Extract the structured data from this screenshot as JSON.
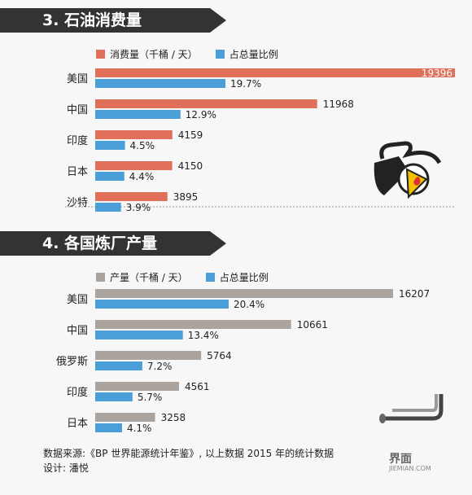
{
  "sections": [
    {
      "title": "3. 石油消费量"
    },
    {
      "title": "4. 各国炼厂产量"
    }
  ],
  "chart_data": [
    {
      "type": "bar",
      "title": "3. 石油消费量",
      "categories": [
        "美国",
        "中国",
        "印度",
        "日本",
        "沙特"
      ],
      "series": [
        {
          "name": "消费量（千桶 / 天）",
          "values": [
            19396,
            11968,
            4159,
            4150,
            3895
          ],
          "labels": [
            "19396",
            "11968",
            "4159",
            "4150",
            "3895"
          ],
          "color": "#e0705a"
        },
        {
          "name": "占总量比例",
          "values": [
            19.7,
            12.9,
            4.5,
            4.4,
            3.9
          ],
          "labels": [
            "19.7%",
            "12.9%",
            "4.5%",
            "4.4%",
            "3.9%"
          ],
          "color": "#4a9fd8"
        }
      ],
      "orientation": "horizontal",
      "legend": "top-left"
    },
    {
      "type": "bar",
      "title": "4. 各国炼厂产量",
      "categories": [
        "美国",
        "中国",
        "俄罗斯",
        "印度",
        "日本"
      ],
      "series": [
        {
          "name": "产量（千桶 / 天）",
          "values": [
            16207,
            10661,
            5764,
            4561,
            3258
          ],
          "labels": [
            "16207",
            "10661",
            "5764",
            "4561",
            "3258"
          ],
          "color": "#aaa39e"
        },
        {
          "name": "占总量比例",
          "values": [
            20.4,
            13.4,
            7.2,
            5.7,
            4.1
          ],
          "labels": [
            "20.4%",
            "13.4%",
            "7.2%",
            "5.7%",
            "4.1%"
          ],
          "color": "#4a9fd8"
        }
      ],
      "orientation": "horizontal",
      "legend": "top-left"
    }
  ],
  "footer": {
    "source": "数据来源:《BP 世界能源统计年鉴》, 以上数据 2015 年的统计数据",
    "designer": "设计: 潘悦"
  },
  "watermark": {
    "cn": "界面",
    "en": "JIEMIAN.COM"
  }
}
